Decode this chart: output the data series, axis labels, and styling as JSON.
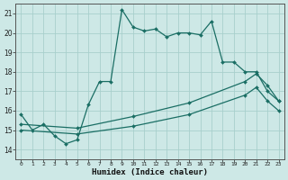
{
  "title": "",
  "xlabel": "Humidex (Indice chaleur)",
  "xlim": [
    -0.5,
    23.5
  ],
  "ylim": [
    13.5,
    21.5
  ],
  "yticks": [
    14,
    15,
    16,
    17,
    18,
    19,
    20,
    21
  ],
  "xticks": [
    0,
    1,
    2,
    3,
    4,
    5,
    6,
    7,
    8,
    9,
    10,
    11,
    12,
    13,
    14,
    15,
    16,
    17,
    18,
    19,
    20,
    21,
    22,
    23
  ],
  "xticklabels": [
    "0",
    "1",
    "2",
    "3",
    "4",
    "5",
    "6",
    "7",
    "8",
    "9",
    "10",
    "11",
    "12",
    "13",
    "14",
    "15",
    "16",
    "17",
    "18",
    "19",
    "20",
    "21",
    "22",
    "23"
  ],
  "bg_color": "#cde8e6",
  "grid_color": "#a8cfcc",
  "line_color": "#1a6e64",
  "line1_x": [
    0,
    1,
    2,
    3,
    4,
    5,
    6,
    7,
    8,
    9,
    10,
    11,
    12,
    13,
    14,
    15,
    16,
    17,
    18,
    19,
    20,
    21,
    22,
    23
  ],
  "line1_y": [
    15.8,
    15.0,
    15.3,
    14.7,
    14.3,
    14.5,
    16.3,
    17.5,
    17.5,
    21.2,
    20.3,
    20.1,
    20.2,
    19.8,
    20.0,
    20.0,
    19.9,
    20.6,
    18.5,
    18.5,
    18.0,
    18.0,
    17.0,
    16.5
  ],
  "line2_x": [
    0,
    5,
    10,
    15,
    20,
    21,
    22,
    23
  ],
  "line2_y": [
    15.3,
    15.1,
    15.7,
    16.4,
    17.5,
    17.9,
    17.3,
    16.5
  ],
  "line3_x": [
    0,
    5,
    10,
    15,
    20,
    21,
    22,
    23
  ],
  "line3_y": [
    15.0,
    14.8,
    15.2,
    15.8,
    16.8,
    17.2,
    16.5,
    16.0
  ]
}
